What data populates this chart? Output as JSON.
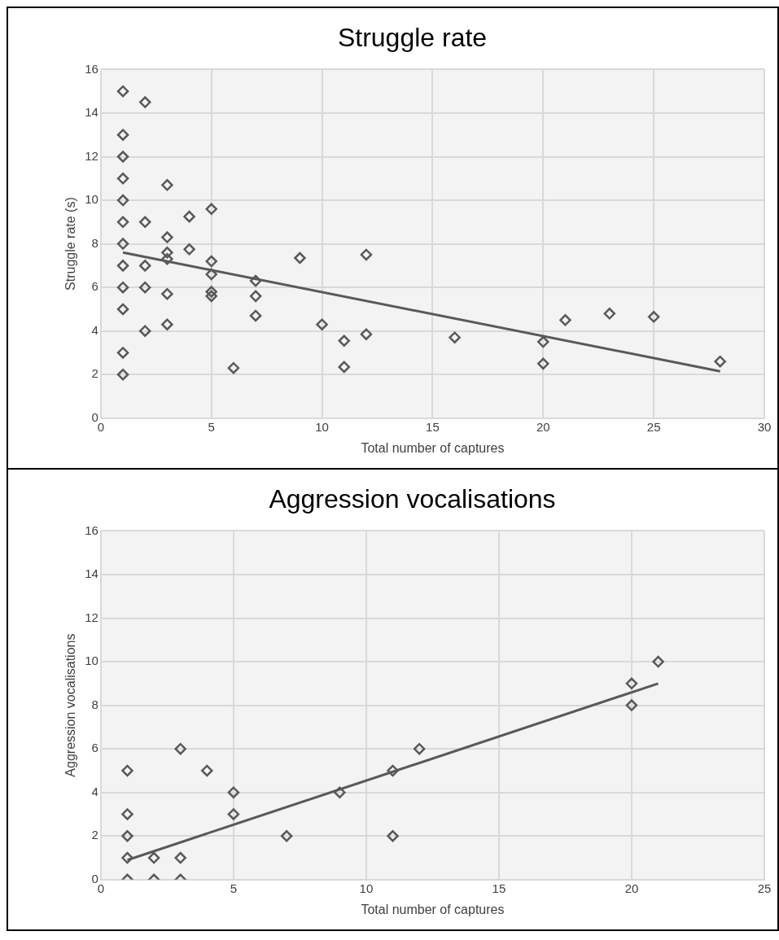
{
  "chart_data": [
    {
      "type": "scatter",
      "title": "Struggle rate",
      "xlabel": "Total number of captures",
      "ylabel": "Struggle rate (s)",
      "xlim": [
        0,
        30
      ],
      "xticks": [
        0,
        5,
        10,
        15,
        20,
        25,
        30
      ],
      "ylim": [
        0,
        16
      ],
      "yticks": [
        0,
        2,
        4,
        6,
        8,
        10,
        12,
        14,
        16
      ],
      "grid": true,
      "legend": false,
      "marker": "diamond",
      "series": [
        {
          "color": "#595959",
          "x": [
            1,
            1,
            1,
            1,
            1,
            1,
            1,
            1,
            1,
            1,
            1,
            1,
            2,
            2,
            2,
            2,
            2,
            3,
            3,
            3,
            3,
            3,
            3,
            4,
            4,
            5,
            5,
            5,
            5,
            5,
            6,
            7,
            7,
            7,
            9,
            10,
            11,
            11,
            12,
            12,
            16,
            20,
            20,
            21,
            23,
            25,
            28
          ],
          "values": [
            15,
            13,
            12,
            11,
            10,
            9,
            8,
            7,
            6,
            5,
            3,
            2,
            14.5,
            9,
            7,
            6,
            4,
            10.7,
            8.3,
            7.6,
            7.3,
            5.7,
            4.3,
            9.25,
            7.75,
            9.6,
            7.2,
            6.6,
            5.8,
            5.6,
            2.3,
            6.3,
            5.6,
            4.7,
            7.35,
            4.3,
            3.55,
            2.35,
            7.5,
            3.85,
            3.7,
            3.5,
            2.5,
            4.5,
            4.8,
            4.65,
            2.6
          ]
        },
        {
          "type": "line",
          "marker": "none",
          "color": "#595959",
          "x": [
            1,
            28
          ],
          "values": [
            7.6,
            2.15
          ]
        }
      ]
    },
    {
      "type": "scatter",
      "title": "Aggression vocalisations",
      "xlabel": "Total number of captures",
      "ylabel": "Aggression vocalisations",
      "xlim": [
        0,
        25
      ],
      "xticks": [
        0,
        5,
        10,
        15,
        20,
        25
      ],
      "ylim": [
        0,
        16
      ],
      "yticks": [
        0,
        2,
        4,
        6,
        8,
        10,
        12,
        14,
        16
      ],
      "grid": true,
      "legend": false,
      "marker": "diamond",
      "series": [
        {
          "color": "#595959",
          "x": [
            1,
            1,
            1,
            1,
            1,
            2,
            2,
            3,
            3,
            3,
            4,
            5,
            5,
            7,
            9,
            11,
            11,
            12,
            20,
            20,
            21
          ],
          "values": [
            5,
            3,
            2,
            1,
            0,
            1,
            0,
            6,
            1,
            0,
            5,
            4,
            3,
            2,
            4,
            5,
            2,
            6,
            9,
            8,
            10
          ]
        },
        {
          "type": "line",
          "marker": "none",
          "color": "#595959",
          "x": [
            1,
            21
          ],
          "values": [
            0.9,
            9.0
          ]
        }
      ]
    }
  ]
}
